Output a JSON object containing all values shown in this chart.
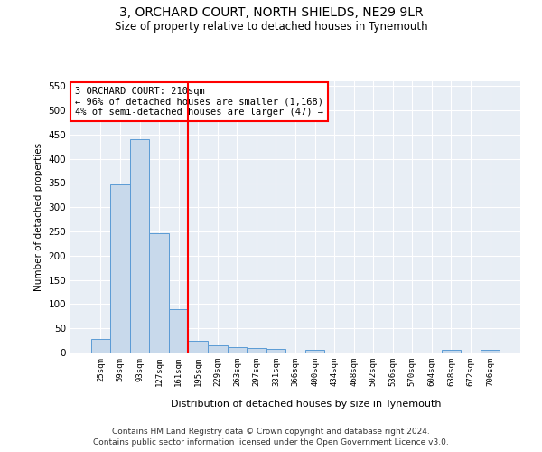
{
  "title": "3, ORCHARD COURT, NORTH SHIELDS, NE29 9LR",
  "subtitle": "Size of property relative to detached houses in Tynemouth",
  "xlabel": "Distribution of detached houses by size in Tynemouth",
  "ylabel": "Number of detached properties",
  "bar_categories": [
    "25sqm",
    "59sqm",
    "93sqm",
    "127sqm",
    "161sqm",
    "195sqm",
    "229sqm",
    "263sqm",
    "297sqm",
    "331sqm",
    "366sqm",
    "400sqm",
    "434sqm",
    "468sqm",
    "502sqm",
    "536sqm",
    "570sqm",
    "604sqm",
    "638sqm",
    "672sqm",
    "706sqm"
  ],
  "bar_values": [
    28,
    348,
    440,
    247,
    90,
    25,
    15,
    12,
    10,
    8,
    0,
    5,
    0,
    0,
    0,
    0,
    0,
    0,
    5,
    0,
    5
  ],
  "bar_color": "#c8d9eb",
  "bar_edge_color": "#5b9bd5",
  "vline_x_index": 5,
  "vline_color": "red",
  "annotation_text": "3 ORCHARD COURT: 210sqm\n← 96% of detached houses are smaller (1,168)\n4% of semi-detached houses are larger (47) →",
  "annotation_box_color": "white",
  "annotation_box_edge": "red",
  "ylim": [
    0,
    560
  ],
  "yticks": [
    0,
    50,
    100,
    150,
    200,
    250,
    300,
    350,
    400,
    450,
    500,
    550
  ],
  "bg_color": "#e8eef5",
  "footer1": "Contains HM Land Registry data © Crown copyright and database right 2024.",
  "footer2": "Contains public sector information licensed under the Open Government Licence v3.0."
}
